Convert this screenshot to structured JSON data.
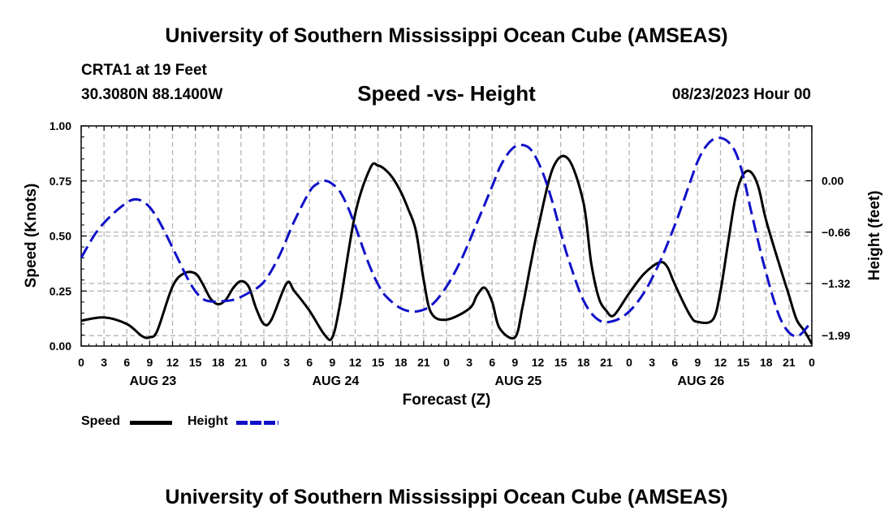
{
  "header": {
    "title": "University of Southern Mississippi Ocean Cube (AMSEAS)",
    "station": "CRTA1 at 19 Feet",
    "coords": "30.3080N  88.1400W",
    "datetime": "08/23/2023 Hour 00"
  },
  "footer": {
    "title": "University of Southern Mississippi Ocean Cube (AMSEAS)"
  },
  "legend": {
    "speed": "Speed",
    "height": "Height"
  },
  "chart_data": {
    "type": "line",
    "title": "Speed -vs- Height",
    "xlabel": "Forecast (Z)",
    "ylabel": "Speed (Knots)",
    "y2label": "Height (feet)",
    "xlim": [
      0,
      96
    ],
    "ylim": [
      0,
      1.0
    ],
    "y2lim": [
      -2.124,
      0.705
    ],
    "x_ticks": [
      0,
      3,
      6,
      9,
      12,
      15,
      18,
      21,
      24,
      27,
      30,
      33,
      36,
      39,
      42,
      45,
      48,
      51,
      54,
      57,
      60,
      63,
      66,
      69,
      72,
      75,
      78,
      81,
      84,
      87,
      90,
      93,
      96
    ],
    "x_tick_labels": [
      "0",
      "3",
      "6",
      "9",
      "12",
      "15",
      "18",
      "21",
      "0",
      "3",
      "6",
      "9",
      "12",
      "15",
      "18",
      "21",
      "0",
      "3",
      "6",
      "9",
      "12",
      "15",
      "18",
      "21",
      "0",
      "3",
      "6",
      "9",
      "12",
      "15",
      "18",
      "21",
      "0"
    ],
    "day_labels": [
      {
        "hour": 9,
        "label": "AUG 23"
      },
      {
        "hour": 33,
        "label": "AUG 24"
      },
      {
        "hour": 57,
        "label": "AUG 25"
      },
      {
        "hour": 81,
        "label": "AUG 26"
      }
    ],
    "y_ticks": [
      0.0,
      0.25,
      0.5,
      0.75,
      1.0
    ],
    "y_tick_labels": [
      "0.00",
      "0.25",
      "0.50",
      "0.75",
      "1.00"
    ],
    "y2_ticks": [
      -1.99,
      -1.32,
      -0.66,
      0.0
    ],
    "y2_tick_labels": [
      "−1.99",
      "−1.32",
      "−0.66",
      "0.00"
    ],
    "grid": true,
    "series": [
      {
        "name": "Speed",
        "axis": "left",
        "color": "#000000",
        "style": "solid",
        "x": [
          0,
          3,
          6,
          8,
          9,
          10,
          12,
          13.5,
          15,
          16,
          17,
          18,
          19,
          20,
          21,
          22,
          23,
          24,
          25,
          27,
          28,
          30,
          32,
          33,
          34,
          36,
          38,
          39,
          40,
          41,
          42,
          43,
          44,
          45,
          46,
          48,
          51,
          52,
          53,
          54,
          55,
          57,
          58,
          59,
          60,
          62,
          64,
          66,
          67,
          68,
          69,
          70,
          72,
          74,
          76,
          77,
          78,
          80,
          81,
          83,
          84,
          85,
          86,
          87,
          88,
          89,
          90,
          92,
          93,
          94,
          95,
          96
        ],
        "values": [
          0.115,
          0.13,
          0.1,
          0.045,
          0.04,
          0.07,
          0.27,
          0.33,
          0.33,
          0.28,
          0.215,
          0.19,
          0.21,
          0.265,
          0.295,
          0.27,
          0.17,
          0.1,
          0.12,
          0.285,
          0.25,
          0.16,
          0.05,
          0.04,
          0.19,
          0.6,
          0.81,
          0.82,
          0.8,
          0.76,
          0.7,
          0.62,
          0.52,
          0.3,
          0.15,
          0.12,
          0.17,
          0.23,
          0.265,
          0.2,
          0.08,
          0.04,
          0.18,
          0.36,
          0.53,
          0.81,
          0.85,
          0.65,
          0.38,
          0.22,
          0.16,
          0.14,
          0.24,
          0.33,
          0.38,
          0.36,
          0.28,
          0.14,
          0.11,
          0.12,
          0.25,
          0.47,
          0.68,
          0.78,
          0.79,
          0.72,
          0.57,
          0.34,
          0.23,
          0.12,
          0.07,
          0.01
        ]
      },
      {
        "name": "Height",
        "axis": "right",
        "color": "#1010c8",
        "style": "dashed",
        "x": [
          0,
          2,
          4,
          6,
          7,
          8,
          9,
          10,
          11,
          12,
          13,
          14,
          15,
          16,
          17,
          18,
          20,
          22,
          24,
          26,
          28,
          30,
          31,
          32,
          33,
          34,
          35,
          36,
          37,
          38,
          39,
          40,
          42,
          44,
          46,
          48,
          50,
          52,
          54,
          55,
          56,
          57,
          58,
          59,
          60,
          61,
          62,
          63,
          64,
          66,
          68,
          70,
          72,
          74,
          76,
          78,
          79,
          80,
          81,
          82,
          83,
          84,
          85,
          86,
          87,
          88,
          90,
          92,
          94,
          96
        ],
        "values": [
          -0.99,
          -0.66,
          -0.44,
          -0.28,
          -0.24,
          -0.26,
          -0.34,
          -0.48,
          -0.66,
          -0.86,
          -1.06,
          -1.26,
          -1.42,
          -1.52,
          -1.55,
          -1.55,
          -1.53,
          -1.44,
          -1.3,
          -0.97,
          -0.52,
          -0.14,
          -0.04,
          0.0,
          -0.04,
          -0.14,
          -0.33,
          -0.58,
          -0.86,
          -1.12,
          -1.33,
          -1.48,
          -1.64,
          -1.68,
          -1.6,
          -1.36,
          -1.0,
          -0.54,
          -0.07,
          0.17,
          0.34,
          0.44,
          0.46,
          0.41,
          0.25,
          0.01,
          -0.3,
          -0.66,
          -1.0,
          -1.54,
          -1.79,
          -1.8,
          -1.68,
          -1.43,
          -1.05,
          -0.57,
          -0.3,
          -0.02,
          0.25,
          0.43,
          0.53,
          0.55,
          0.5,
          0.36,
          0.06,
          -0.38,
          -1.19,
          -1.8,
          -2.0,
          -1.8
        ]
      }
    ]
  }
}
